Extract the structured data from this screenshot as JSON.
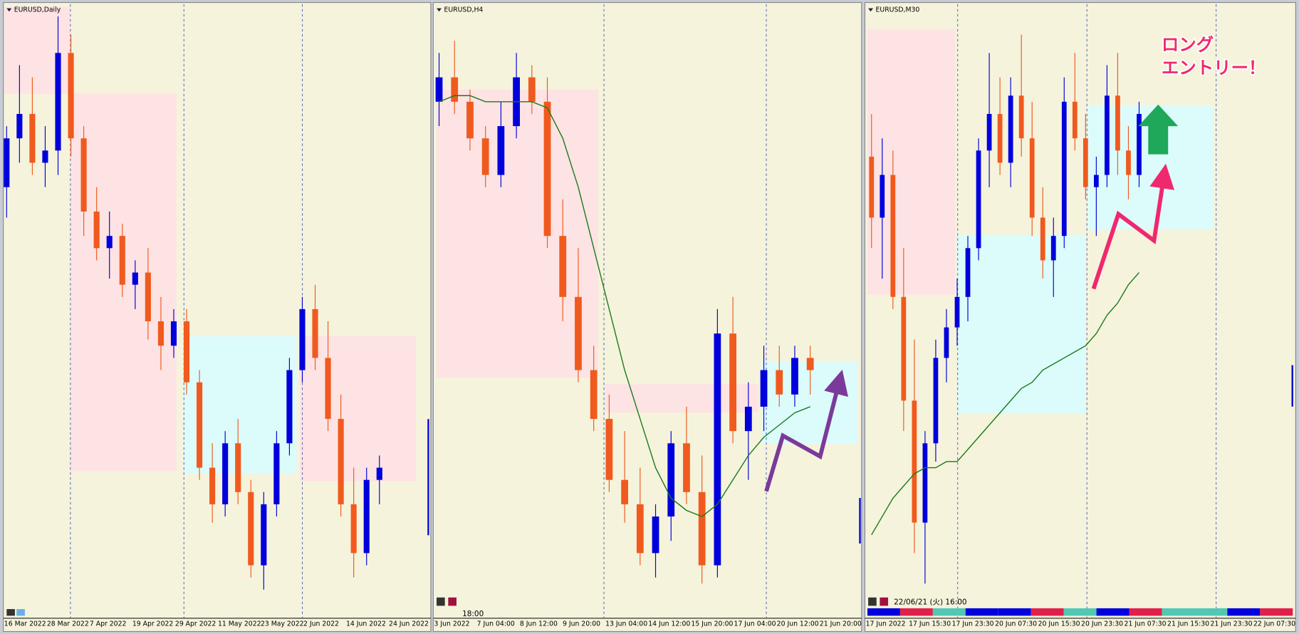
{
  "chart_data": [
    {
      "type": "candlestick",
      "title": "EURUSD,Daily",
      "ylim": [
        0,
        100
      ],
      "up_color": "#0000dd",
      "down_color": "#f05a1e",
      "x_labels": [
        "16 Mar 2022",
        "28 Mar 2022",
        "7 Apr 2022",
        "19 Apr 2022",
        "29 Apr 2022",
        "11 May 2022",
        "23 May 2022",
        "2 Jun 2022",
        "14 Jun 2022",
        "24 Jun 2022"
      ],
      "open": [
        70,
        78,
        82,
        74,
        76,
        92,
        78,
        66,
        60,
        62,
        54,
        56,
        48,
        44,
        48,
        38,
        24,
        18,
        28,
        20,
        8,
        18,
        28,
        40,
        50,
        42,
        32,
        18,
        10,
        22
      ],
      "high": [
        80,
        90,
        88,
        80,
        98,
        95,
        80,
        70,
        66,
        64,
        58,
        60,
        52,
        50,
        50,
        40,
        28,
        30,
        32,
        22,
        20,
        30,
        42,
        52,
        54,
        48,
        36,
        24,
        24,
        26
      ],
      "low": [
        65,
        74,
        72,
        70,
        72,
        75,
        62,
        58,
        55,
        52,
        50,
        45,
        40,
        42,
        36,
        22,
        15,
        16,
        18,
        6,
        4,
        16,
        26,
        38,
        40,
        30,
        16,
        6,
        8,
        18
      ],
      "close": [
        78,
        82,
        74,
        76,
        92,
        78,
        66,
        60,
        62,
        54,
        56,
        48,
        44,
        48,
        38,
        24,
        18,
        28,
        20,
        8,
        18,
        28,
        40,
        50,
        42,
        32,
        18,
        10,
        22,
        24
      ]
    },
    {
      "type": "candlestick",
      "title": "EURUSD,H4",
      "ylim": [
        0,
        100
      ],
      "up_color": "#0000dd",
      "down_color": "#f05a1e",
      "x_labels": [
        "3 Jun 2022",
        "7 Jun 04:00",
        "8 Jun 12:00",
        "9 Jun 20:00",
        "13 Jun 04:00",
        "14 Jun 12:00",
        "15 Jun 20:00",
        "17 Jun 04:00",
        "20 Jun 12:00",
        "21 Jun 20:00"
      ],
      "footer_text": "18:00",
      "open": [
        84,
        88,
        84,
        78,
        72,
        80,
        88,
        84,
        62,
        52,
        40,
        32,
        22,
        18,
        10,
        16,
        28,
        20,
        8,
        46,
        30,
        34,
        40,
        36,
        42
      ],
      "high": [
        92,
        94,
        86,
        80,
        84,
        92,
        90,
        88,
        68,
        60,
        44,
        36,
        30,
        24,
        18,
        30,
        34,
        26,
        50,
        52,
        38,
        44,
        44,
        44,
        44
      ],
      "low": [
        80,
        82,
        76,
        70,
        70,
        78,
        82,
        60,
        48,
        38,
        30,
        20,
        15,
        8,
        6,
        12,
        18,
        5,
        6,
        28,
        22,
        30,
        34,
        34,
        36
      ],
      "close": [
        88,
        84,
        78,
        72,
        80,
        88,
        84,
        62,
        52,
        40,
        32,
        22,
        18,
        10,
        16,
        28,
        20,
        8,
        46,
        30,
        34,
        40,
        36,
        42,
        40
      ],
      "ma": {
        "color": "#1a7a1a",
        "values": [
          84,
          85,
          85,
          84,
          84,
          84,
          84,
          83,
          78,
          70,
          60,
          50,
          40,
          32,
          24,
          19,
          17,
          16,
          18,
          22,
          26,
          29,
          31,
          33,
          34
        ]
      }
    },
    {
      "type": "candlestick",
      "title": "EURUSD,M30",
      "ylim": [
        0,
        100
      ],
      "up_color": "#0000dd",
      "down_color": "#f05a1e",
      "x_labels": [
        "17 Jun 2022",
        "17 Jun 15:30",
        "17 Jun 23:30",
        "20 Jun 07:30",
        "20 Jun 15:30",
        "20 Jun 23:30",
        "21 Jun 07:30",
        "21 Jun 15:30",
        "21 Jun 23:30",
        "22 Jun 07:30"
      ],
      "footer_text": "22/06/21 (火) 16:00",
      "annotations": [
        "ロング",
        "エントリー！"
      ],
      "open": [
        75,
        65,
        72,
        52,
        35,
        15,
        28,
        42,
        47,
        52,
        60,
        76,
        82,
        74,
        85,
        78,
        65,
        58,
        62,
        84,
        78,
        70,
        72,
        85,
        76,
        72
      ],
      "high": [
        82,
        78,
        76,
        60,
        45,
        30,
        45,
        50,
        55,
        62,
        78,
        92,
        88,
        88,
        95,
        84,
        70,
        65,
        88,
        92,
        82,
        75,
        90,
        92,
        80,
        84
      ],
      "low": [
        60,
        55,
        50,
        30,
        10,
        5,
        25,
        38,
        44,
        48,
        58,
        70,
        72,
        70,
        75,
        62,
        55,
        52,
        60,
        76,
        68,
        62,
        70,
        72,
        68,
        70
      ],
      "close": [
        65,
        72,
        52,
        35,
        15,
        28,
        42,
        47,
        52,
        60,
        76,
        82,
        74,
        85,
        78,
        65,
        58,
        62,
        84,
        78,
        70,
        72,
        85,
        76,
        72,
        82
      ],
      "ma": {
        "color": "#1a7a1a",
        "values": [
          13,
          16,
          19,
          21,
          23,
          24,
          24,
          25,
          25,
          27,
          29,
          31,
          33,
          35,
          37,
          38,
          40,
          41,
          42,
          43,
          44,
          46,
          49,
          51,
          54,
          56
        ]
      }
    }
  ]
}
